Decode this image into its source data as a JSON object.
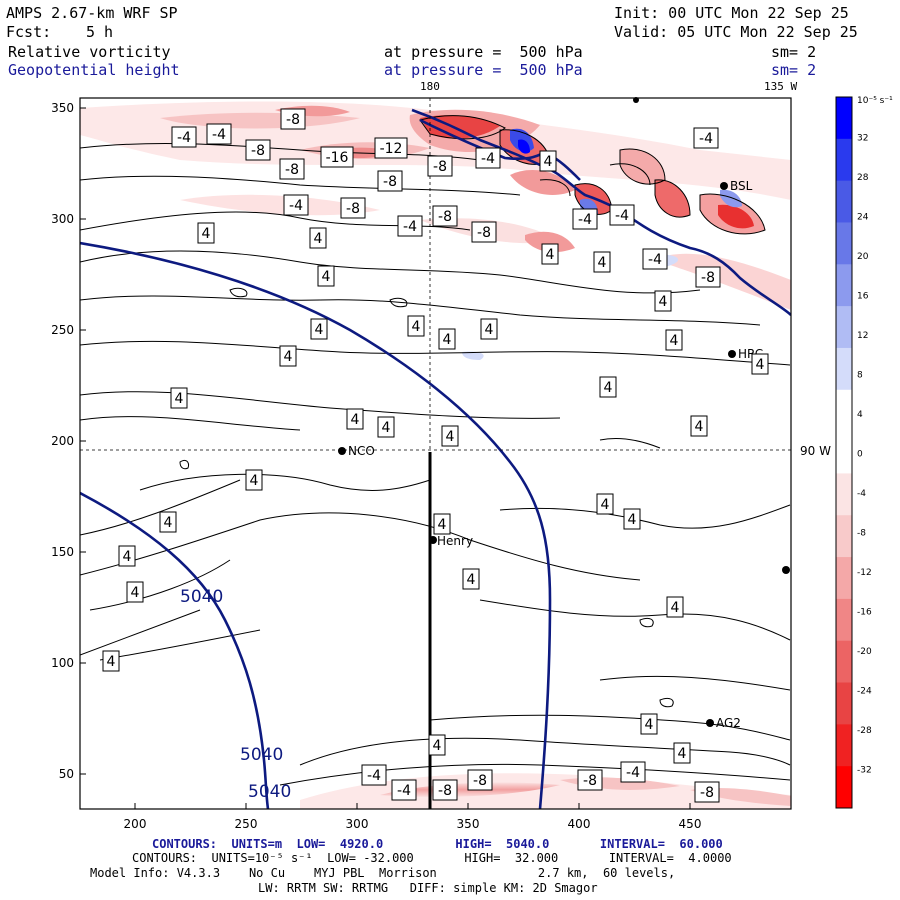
{
  "header": {
    "model_title": "AMPS 2.67-km WRF SP",
    "init": "Init: 00 UTC Mon 22 Sep 25",
    "forecast_label": "Fcst:",
    "forecast_hours": "5 h",
    "valid": "Valid: 05 UTC Mon 22 Sep 25",
    "field1_name": "Relative vorticity",
    "field1_level": "at pressure =  500 hPa",
    "field1_sm": "sm= 2",
    "field2_name": "Geopotential height",
    "field2_level": "at pressure =  500 hPa",
    "field2_sm": "sm= 2"
  },
  "map": {
    "lon_label_top": "180",
    "lon_label_top_right": "135 W",
    "lat_label_right": "90 W",
    "x_ticks": [
      "200",
      "250",
      "300",
      "350",
      "400",
      "450"
    ],
    "y_ticks": [
      "350",
      "300",
      "250",
      "200",
      "150",
      "100",
      "50"
    ],
    "stations": [
      {
        "name": "NCO"
      },
      {
        "name": "Henry"
      },
      {
        "name": "BSL"
      },
      {
        "name": "HRC"
      },
      {
        "name": "AG2"
      }
    ],
    "height_labels": [
      "5040",
      "5040",
      "5040"
    ],
    "vort_labels": [
      "-4",
      "-4",
      "-8",
      "-8",
      "-8",
      "-16",
      "-12",
      "-8",
      "-8",
      "-8",
      "-4",
      "-4",
      "-8",
      "-4",
      "-8",
      "-4",
      "-4",
      "-8",
      "4",
      "4",
      "4",
      "4",
      "4",
      "4",
      "4",
      "4",
      "4",
      "4",
      "4",
      "4",
      "4",
      "4",
      "4",
      "4",
      "4",
      "4",
      "4",
      "4",
      "4",
      "4",
      "4",
      "4",
      "4",
      "4",
      "4",
      "4",
      "4",
      "-4",
      "4",
      "4",
      "4",
      "-4",
      "4",
      "-4",
      "-8",
      "-4",
      "-8",
      "-8",
      "-4",
      "-8"
    ]
  },
  "colorbar": {
    "unit_label": "10⁻⁵ s⁻¹",
    "tick_values": [
      "32",
      "28",
      "24",
      "20",
      "16",
      "12",
      "8",
      "4",
      "0",
      "-4",
      "-8",
      "-12",
      "-16",
      "-20",
      "-24",
      "-28",
      "-32"
    ],
    "colors": [
      "#0000ff",
      "#2a3aee",
      "#4a5ae6",
      "#6878e8",
      "#8c9aee",
      "#b0bcf4",
      "#d4dcfa",
      "#ffffff",
      "#ffffff",
      "#fbe4e4",
      "#f8caca",
      "#f4a8a8",
      "#f08686",
      "#ec6464",
      "#e84444",
      "#f02222",
      "#ff0000"
    ]
  },
  "footer": {
    "line1": "CONTOURS:  UNITS=m  LOW=  4920.0          HIGH=  5040.0       INTERVAL=  60.000",
    "line2": "CONTOURS:  UNITS=10⁻⁵ s⁻¹  LOW= -32.000       HIGH=  32.000       INTERVAL=  4.0000",
    "line3": "Model Info: V4.3.3    No Cu    MYJ PBL  Morrison              2.7 km,  60 levels,",
    "line4": "LW: RRTM SW: RRTMG   DIFF: simple KM: 2D Smagor"
  }
}
